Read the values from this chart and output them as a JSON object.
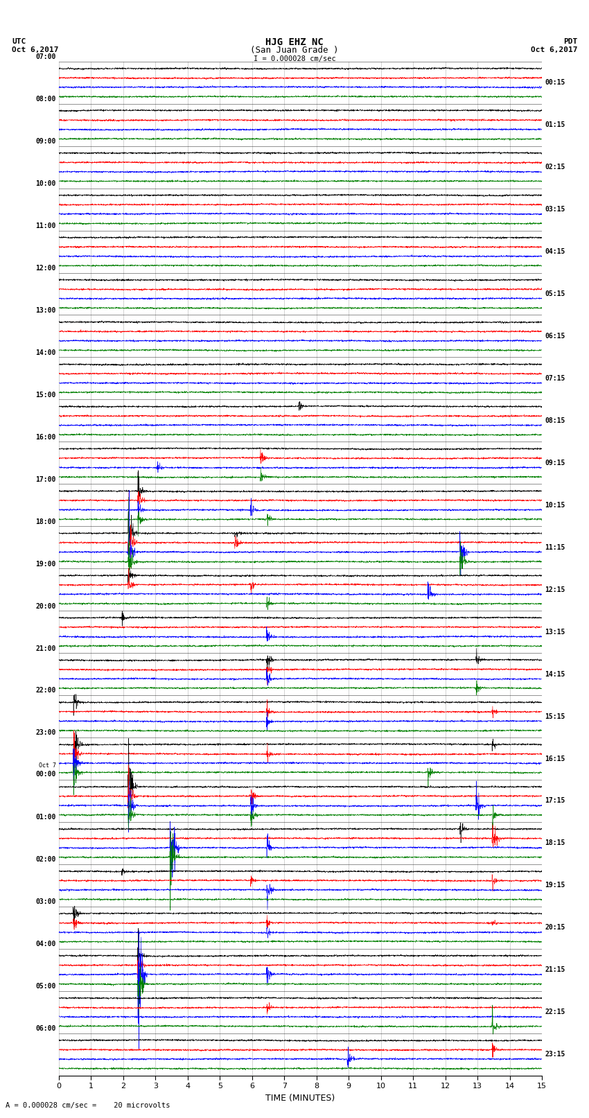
{
  "title_line1": "HJG EHZ NC",
  "title_line2": "(San Juan Grade )",
  "title_line3": "I = 0.000028 cm/sec",
  "left_header_line1": "UTC",
  "left_header_line2": "Oct 6,2017",
  "right_header_line1": "PDT",
  "right_header_line2": "Oct 6,2017",
  "xlabel": "TIME (MINUTES)",
  "bottom_note": "A = 0.000028 cm/sec =    20 microvolts",
  "xmin": 0,
  "xmax": 15,
  "num_rows": 24,
  "traces_per_row": 4,
  "trace_colors": [
    "black",
    "red",
    "blue",
    "green"
  ],
  "utc_labels": [
    "07:00",
    "08:00",
    "09:00",
    "10:00",
    "11:00",
    "12:00",
    "13:00",
    "14:00",
    "15:00",
    "16:00",
    "17:00",
    "18:00",
    "19:00",
    "20:00",
    "21:00",
    "22:00",
    "23:00",
    "Oct 7\n00:00",
    "01:00",
    "02:00",
    "03:00",
    "04:00",
    "05:00",
    "06:00"
  ],
  "pdt_labels": [
    "00:15",
    "01:15",
    "02:15",
    "03:15",
    "04:15",
    "05:15",
    "06:15",
    "07:15",
    "08:15",
    "09:15",
    "10:15",
    "11:15",
    "12:15",
    "13:15",
    "14:15",
    "15:15",
    "16:15",
    "17:15",
    "18:15",
    "19:15",
    "20:15",
    "21:15",
    "22:15",
    "23:15"
  ],
  "bg_color": "white",
  "seed": 42,
  "fig_width": 8.5,
  "fig_height": 16.13,
  "dpi": 100
}
